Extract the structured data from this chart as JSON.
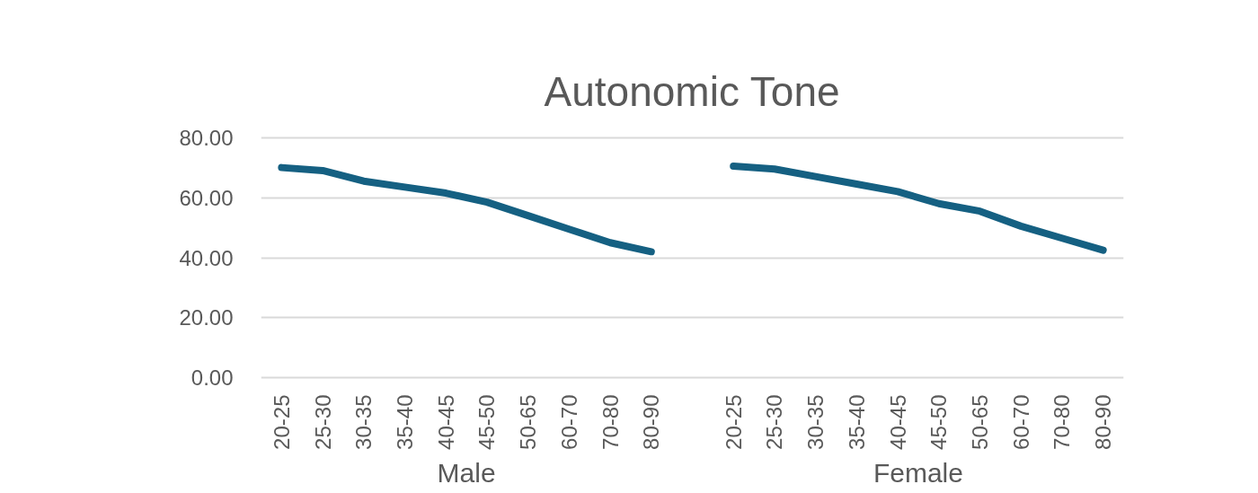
{
  "chart_data": {
    "type": "line",
    "title": "Autonomic Tone",
    "categories": [
      "20-25",
      "25-30",
      "30-35",
      "35-40",
      "40-45",
      "45-50",
      "50-65",
      "60-70",
      "70-80",
      "80-90",
      null,
      "20-25",
      "25-30",
      "30-35",
      "35-40",
      "40-45",
      "45-50",
      "50-65",
      "60-70",
      "70-80",
      "80-90"
    ],
    "series": [
      {
        "color": "#156082",
        "values": [
          70,
          69,
          65.5,
          63.5,
          61.5,
          58.5,
          54,
          49.5,
          45,
          42,
          null,
          70.5,
          69.5,
          67,
          64.5,
          62,
          58,
          55.5,
          50.5,
          46.5,
          42.5
        ]
      }
    ],
    "annotations": [
      "Male",
      "Female"
    ],
    "ylim": [
      0,
      80
    ],
    "yticks": [
      {
        "value": 0,
        "label": "0.00"
      },
      {
        "value": 20,
        "label": "20.00"
      },
      {
        "value": 40,
        "label": "40.00"
      },
      {
        "value": 60,
        "label": "60.00"
      },
      {
        "value": 80,
        "label": "80.00"
      }
    ],
    "grid": "y",
    "marker": "none",
    "line_style": "solid"
  }
}
